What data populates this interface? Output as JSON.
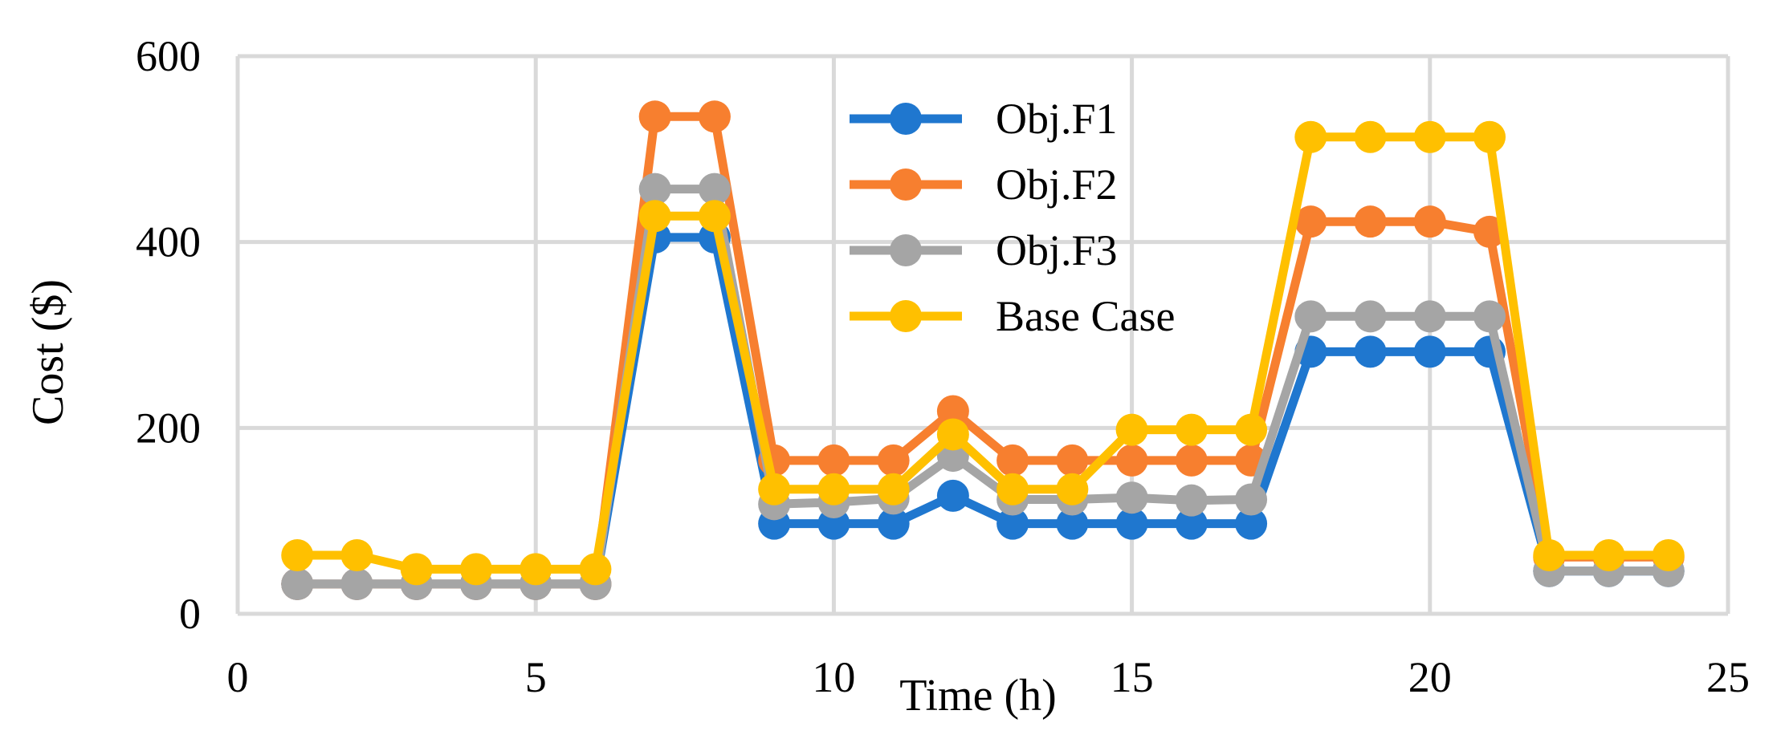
{
  "chart_data": {
    "type": "line",
    "title": "",
    "xlabel": "Time (h)",
    "ylabel": "Cost ($)",
    "xlim": [
      0,
      25
    ],
    "ylim": [
      0,
      600
    ],
    "xticks": [
      0,
      5,
      10,
      15,
      20,
      25
    ],
    "yticks": [
      0,
      200,
      400,
      600
    ],
    "grid": true,
    "legend_position": "top-center",
    "x": [
      1,
      2,
      3,
      4,
      5,
      6,
      7,
      8,
      9,
      10,
      11,
      12,
      13,
      14,
      15,
      16,
      17,
      18,
      19,
      20,
      21,
      22,
      23,
      24
    ],
    "series": [
      {
        "name": "Obj.F1",
        "color": "#1F77CF",
        "values": [
          32,
          32,
          32,
          32,
          32,
          32,
          405,
          405,
          97,
          97,
          97,
          127,
          97,
          97,
          97,
          97,
          97,
          282,
          282,
          282,
          282,
          46,
          46,
          46
        ]
      },
      {
        "name": "Obj.F2",
        "color": "#F77F2F",
        "values": [
          32,
          32,
          32,
          32,
          32,
          32,
          535,
          535,
          165,
          165,
          165,
          218,
          165,
          165,
          165,
          165,
          165,
          422,
          422,
          422,
          411,
          61,
          61,
          61
        ]
      },
      {
        "name": "Obj.F3",
        "color": "#A5A5A5",
        "values": [
          32,
          32,
          32,
          32,
          32,
          32,
          457,
          457,
          118,
          120,
          124,
          170,
          123,
          123,
          125,
          122,
          123,
          320,
          320,
          320,
          320,
          46,
          46,
          46
        ]
      },
      {
        "name": "Base Case",
        "color": "#FFC000",
        "values": [
          63,
          63,
          48,
          48,
          48,
          48,
          428,
          428,
          134,
          134,
          134,
          193,
          134,
          134,
          198,
          198,
          198,
          513,
          513,
          513,
          513,
          63,
          63,
          63
        ]
      }
    ]
  }
}
